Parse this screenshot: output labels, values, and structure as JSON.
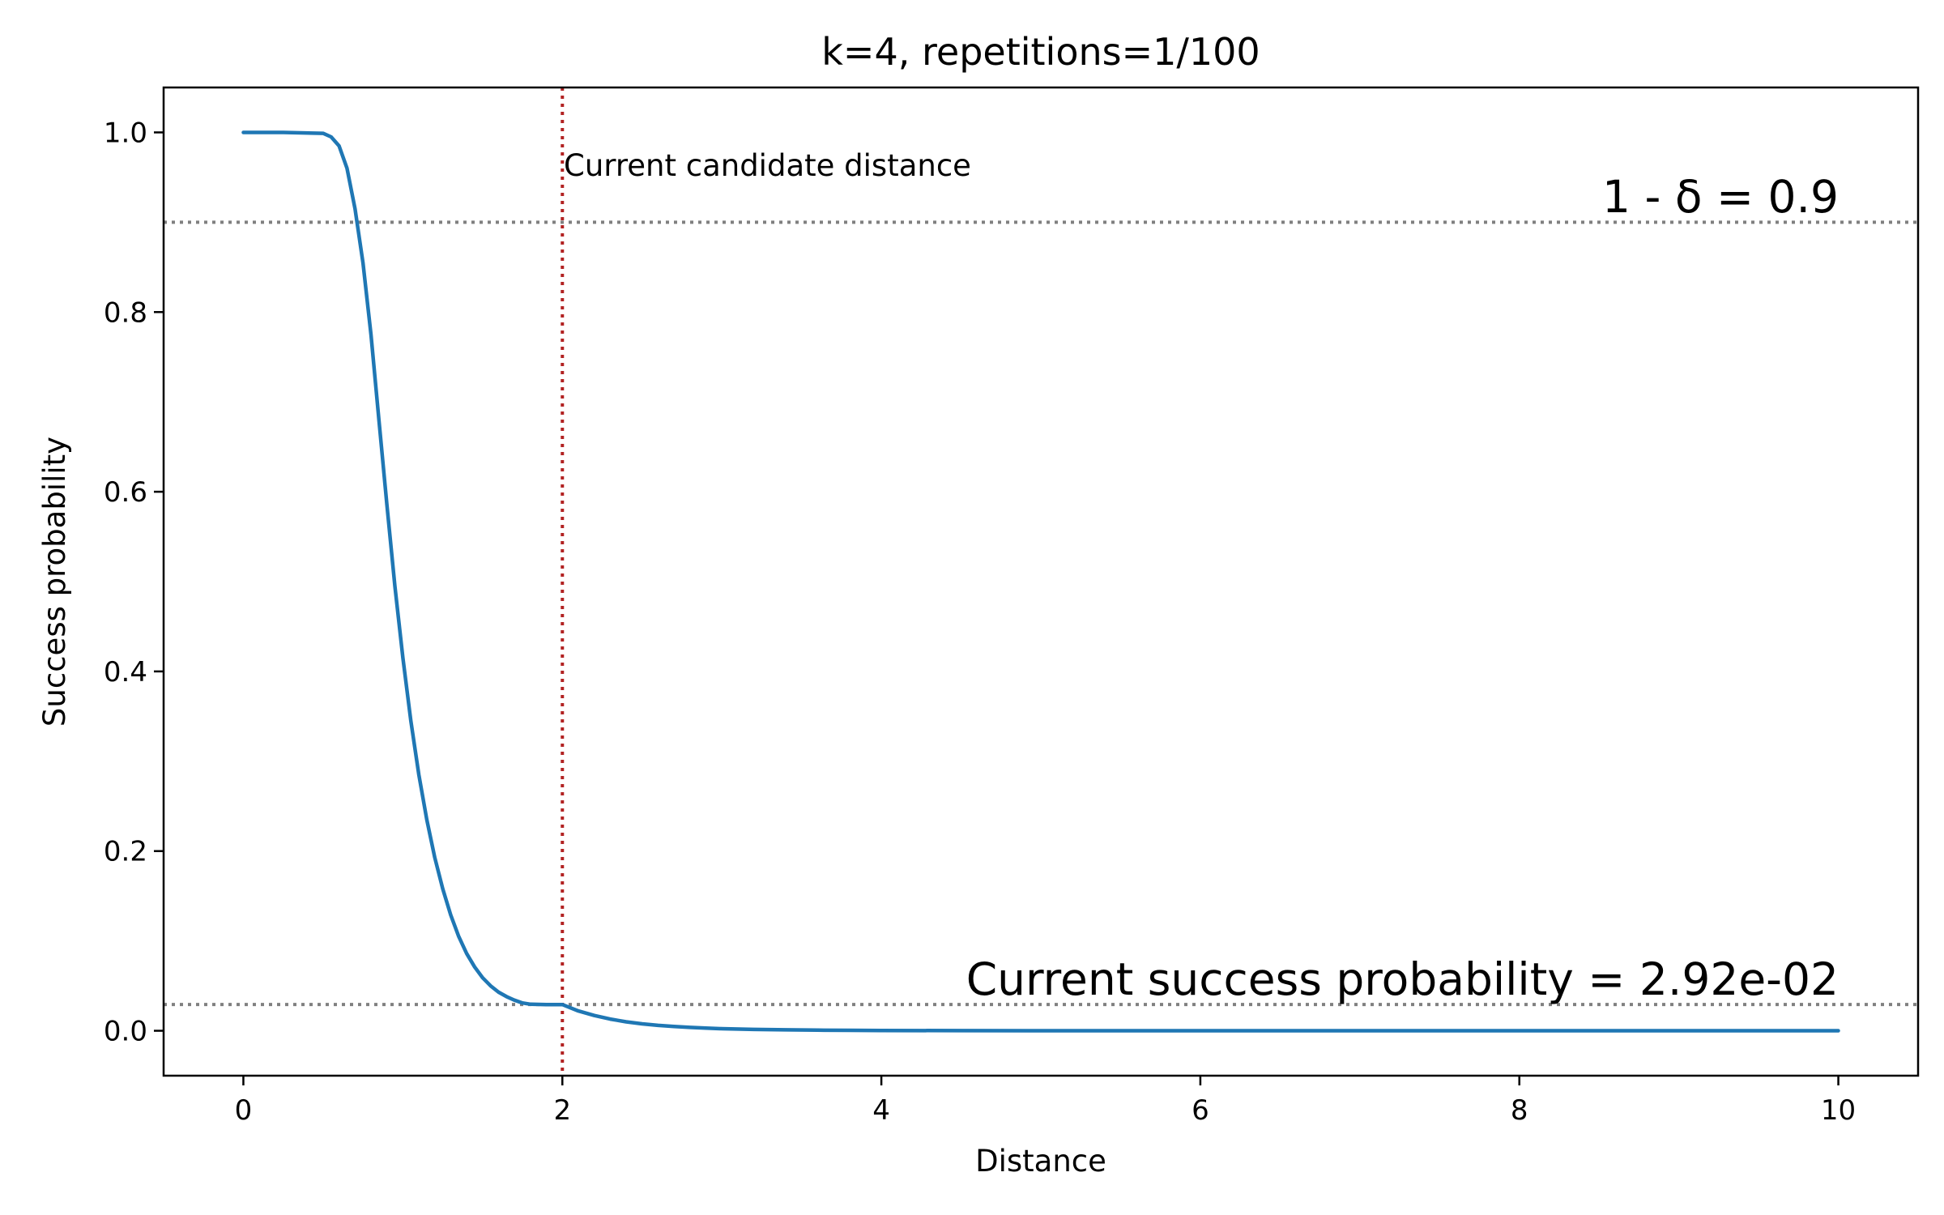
{
  "chart_data": {
    "type": "line",
    "title": "k=4, repetitions=1/100",
    "xlabel": "Distance",
    "ylabel": "Success probability",
    "xlim": [
      -0.5,
      10.5
    ],
    "ylim": [
      -0.05,
      1.05
    ],
    "x_ticks": [
      0,
      2,
      4,
      6,
      8,
      10
    ],
    "x_tick_labels": [
      "0",
      "2",
      "4",
      "6",
      "8",
      "10"
    ],
    "y_ticks": [
      0.0,
      0.2,
      0.4,
      0.6,
      0.8,
      1.0
    ],
    "y_tick_labels": [
      "0.0",
      "0.2",
      "0.4",
      "0.6",
      "0.8",
      "1.0"
    ],
    "grid": false,
    "series": [
      {
        "color": "#1f77b4",
        "x": [
          0,
          0.25,
          0.5,
          0.55,
          0.6,
          0.65,
          0.7,
          0.75,
          0.8,
          0.85,
          0.9,
          0.95,
          1.0,
          1.05,
          1.1,
          1.15,
          1.2,
          1.25,
          1.3,
          1.35,
          1.4,
          1.45,
          1.5,
          1.55,
          1.6,
          1.65,
          1.7,
          1.75,
          1.8,
          1.85,
          1.9,
          1.95,
          2.0,
          2.1,
          2.2,
          2.3,
          2.4,
          2.5,
          2.6,
          2.7,
          2.8,
          2.9,
          3.0,
          3.2,
          3.4,
          3.6,
          3.8,
          4.0,
          4.5,
          5.0,
          6.0,
          7.0,
          8.0,
          9.0,
          10.0
        ],
        "y": [
          1.0,
          1.0,
          0.999,
          0.995,
          0.985,
          0.96,
          0.915,
          0.855,
          0.775,
          0.68,
          0.585,
          0.495,
          0.415,
          0.345,
          0.285,
          0.235,
          0.193,
          0.158,
          0.129,
          0.105,
          0.086,
          0.071,
          0.059,
          0.05,
          0.043,
          0.038,
          0.034,
          0.031,
          0.0295,
          0.0293,
          0.0292,
          0.0292,
          0.0292,
          0.022,
          0.017,
          0.013,
          0.01,
          0.0077,
          0.006,
          0.0047,
          0.0037,
          0.0029,
          0.0023,
          0.0015,
          0.001,
          0.0007,
          0.0005,
          0.0003,
          0.00015,
          8e-05,
          2e-05,
          1e-05,
          0.0,
          0.0,
          0.0
        ]
      }
    ],
    "hlines": [
      {
        "y": 0.9,
        "color": "#808080",
        "style": "dotted"
      },
      {
        "y": 0.0292,
        "color": "#808080",
        "style": "dotted"
      }
    ],
    "vlines": [
      {
        "x": 2.0,
        "color": "#b22222",
        "style": "dotted"
      }
    ],
    "annotations": {
      "vline_label": "Current candidate distance",
      "delta_label": "1 - δ = 0.9",
      "current_prob_label": "Current success probability = 2.92e-02"
    }
  }
}
